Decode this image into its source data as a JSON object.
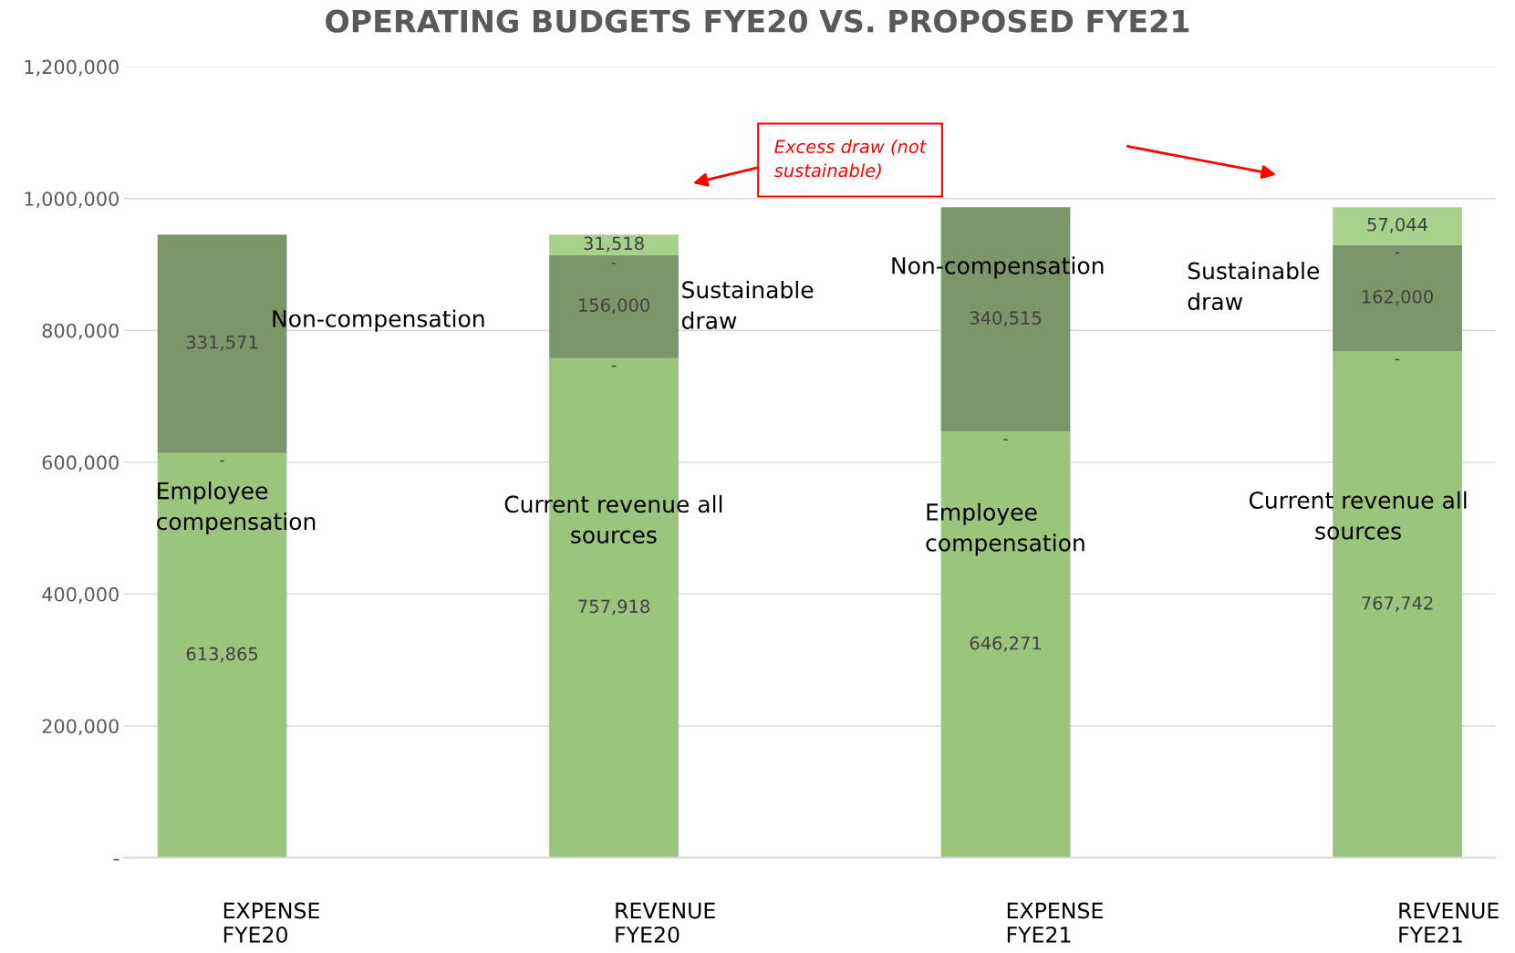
{
  "chart_data": {
    "type": "bar",
    "stacked": true,
    "title": "OPERATING BUDGETS FYE20 VS. PROPOSED FYE21",
    "categories": [
      "EXPENSE\nFYE20",
      "REVENUE\nFYE20",
      "EXPENSE\nFYE21",
      "REVENUE\nFYE21"
    ],
    "series": [
      {
        "color": "#9bc47d",
        "values": [
          613865,
          757918,
          646271,
          767742
        ],
        "value_labels": [
          "613,865",
          "757,918",
          "646,271",
          "767,742"
        ]
      },
      {
        "color": "#7b9669",
        "values": [
          331571,
          156000,
          340515,
          162000
        ],
        "value_labels": [
          "331,571",
          "156,000",
          "340,515",
          "162,000"
        ]
      },
      {
        "color": "#a9d18e",
        "values": [
          0,
          31518,
          0,
          57044
        ],
        "value_labels": [
          null,
          "31,518",
          null,
          "57,044"
        ]
      }
    ],
    "ylim": [
      0,
      1200000
    ],
    "yticks": [
      {
        "value": 0,
        "label": "-"
      },
      {
        "value": 200000,
        "label": "200,000"
      },
      {
        "value": 400000,
        "label": "400,000"
      },
      {
        "value": 600000,
        "label": "600,000"
      },
      {
        "value": 800000,
        "label": "800,000"
      },
      {
        "value": 1000000,
        "label": "1,000,000"
      },
      {
        "value": 1200000,
        "label": "1,200,000"
      }
    ],
    "grid": "y",
    "annotations": [
      "Employee\ncompensation",
      "Non-compensation",
      "Current revenue all\nsources",
      "Sustainable\ndraw",
      "Non-compensation",
      "Employee\ncompensation",
      "Sustainable\ndraw",
      "Current revenue all\nsources",
      "Excess draw (not\nsustainable)",
      "-",
      "-",
      "-",
      "-",
      "-",
      "-"
    ]
  }
}
